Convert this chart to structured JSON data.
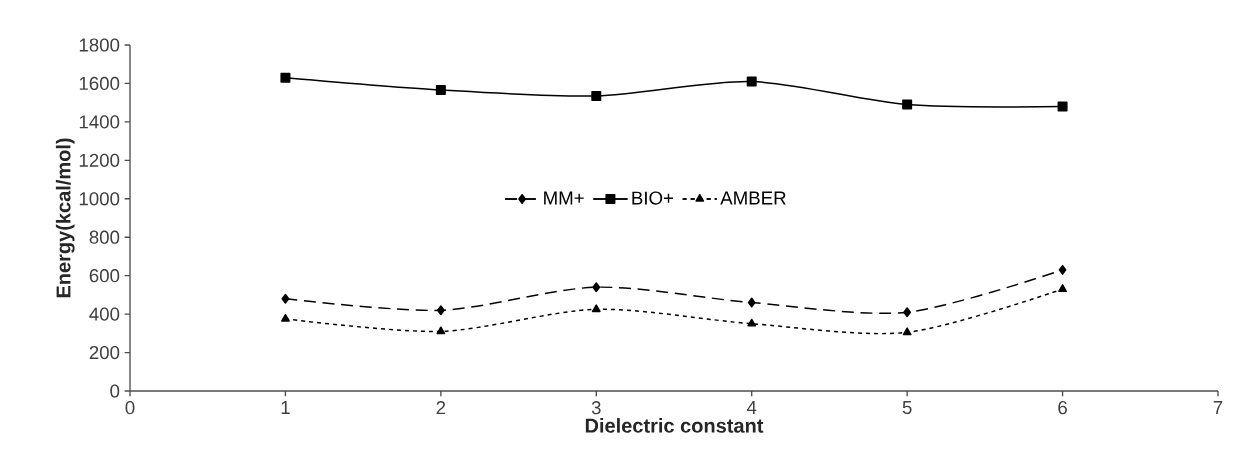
{
  "chart_data": {
    "type": "line",
    "xlabel": "Dielectric constant",
    "ylabel": "Energy(kcal/mol)",
    "x": [
      1,
      2,
      3,
      4,
      5,
      6
    ],
    "series": [
      {
        "name": "MM+",
        "color": "#000000",
        "marker": "diamond",
        "line_style": "dashed",
        "values": [
          480,
          420,
          540,
          460,
          410,
          630
        ]
      },
      {
        "name": "BIO+",
        "color": "#000000",
        "marker": "square",
        "line_style": "solid",
        "values": [
          1630,
          1566,
          1535,
          1610,
          1490,
          1480
        ]
      },
      {
        "name": "AMBER",
        "color": "#000000",
        "marker": "triangle",
        "line_style": "dotted",
        "values": [
          375,
          310,
          425,
          350,
          305,
          530
        ]
      }
    ],
    "xlim": [
      0,
      7
    ],
    "xticks": [
      0,
      1,
      2,
      3,
      4,
      5,
      6,
      7
    ],
    "ylim": [
      0,
      1800
    ],
    "yticks": [
      0,
      200,
      400,
      600,
      800,
      1000,
      1200,
      1400,
      1600,
      1800
    ],
    "grid": false,
    "legend": "center"
  }
}
